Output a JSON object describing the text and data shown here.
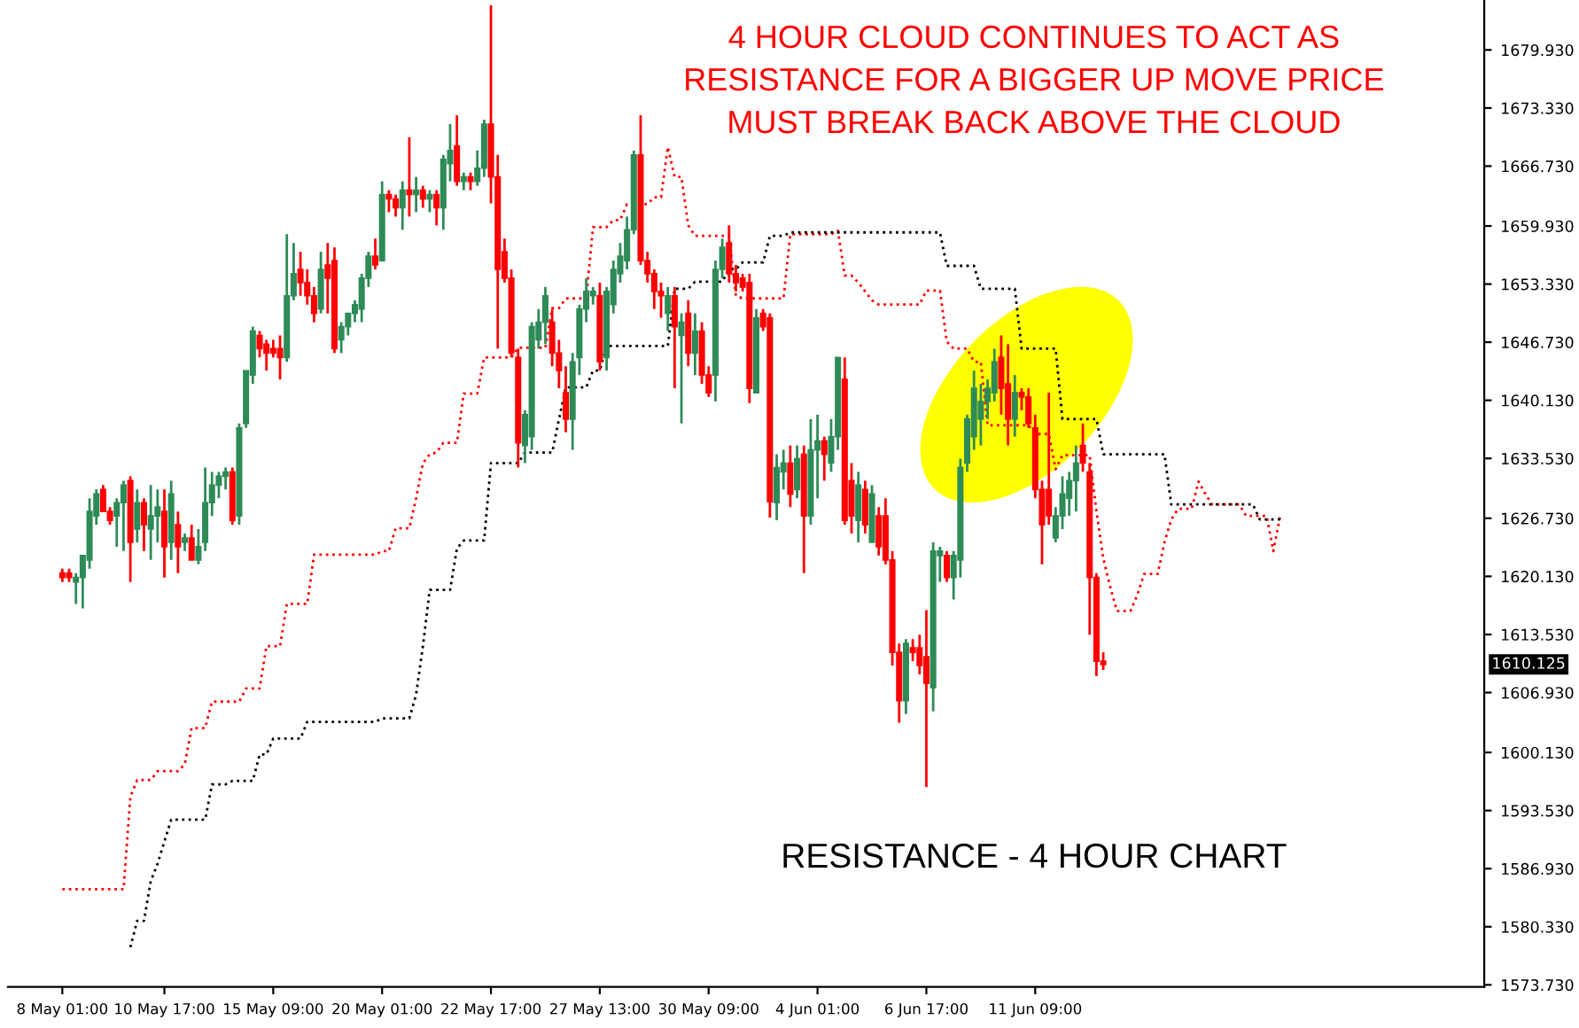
{
  "chart_data": {
    "type": "candlestick",
    "annotations": [
      "4 HOUR CLOUD CONTINUES TO ACT AS\nRESISTANCE FOR A BIGGER UP MOVE PRICE\nMUST BREAK BACK ABOVE THE CLOUD",
      "RESISTANCE - 4 HOUR CHART",
      "1610.125"
    ],
    "categories": [
      "8 May 01:00",
      null,
      null,
      null,
      null,
      null,
      null,
      null,
      null,
      null,
      null,
      null,
      null,
      null,
      null,
      "10 May 17:00",
      null,
      null,
      null,
      null,
      null,
      null,
      null,
      null,
      null,
      null,
      null,
      null,
      null,
      null,
      null,
      "15 May 09:00",
      null,
      null,
      null,
      null,
      null,
      null,
      null,
      null,
      null,
      null,
      null,
      null,
      null,
      null,
      null,
      "20 May 01:00",
      null,
      null,
      null,
      null,
      null,
      null,
      null,
      null,
      null,
      null,
      null,
      null,
      null,
      null,
      null,
      "22 May 17:00",
      null,
      null,
      null,
      null,
      null,
      null,
      null,
      null,
      null,
      null,
      null,
      null,
      null,
      null,
      null,
      "27 May 13:00",
      null,
      null,
      null,
      null,
      null,
      null,
      null,
      null,
      null,
      null,
      null,
      null,
      null,
      null,
      null,
      "30 May 09:00",
      null,
      null,
      null,
      null,
      null,
      null,
      null,
      null,
      null,
      null,
      null,
      null,
      null,
      null,
      null,
      "4 Jun 01:00",
      null,
      null,
      null,
      null,
      null,
      null,
      null,
      null,
      null,
      null,
      null,
      null,
      null,
      null,
      null,
      "6 Jun 17:00",
      null,
      null,
      null,
      null,
      null,
      null,
      null,
      null,
      null,
      null,
      null,
      null,
      null,
      null,
      null,
      "11 Jun 09:00",
      null,
      null,
      null,
      null,
      null,
      null,
      null,
      null,
      null,
      null,
      null,
      null,
      null,
      null,
      null,
      null,
      null,
      null,
      null,
      null,
      null,
      null,
      null,
      null,
      null,
      null,
      null,
      null,
      null,
      null,
      null,
      null,
      null,
      null,
      null,
      null
    ],
    "colors": [
      "#ff0000",
      "#ff0000",
      "#2e8b57",
      "#2e8b57",
      "#2e8b57",
      "#2e8b57",
      "#ff0000",
      "#ff0000",
      "#2e8b57",
      "#2e8b57",
      "#ff0000",
      "#2e8b57",
      "#ff0000",
      "#2e8b57",
      "#2e8b57",
      "#ff0000",
      "#2e8b57",
      "#ff0000",
      "#2e8b57",
      "#ff0000",
      "#2e8b57",
      "#2e8b57",
      "#2e8b57",
      "#2e8b57",
      "#2e8b57",
      "#ff0000",
      "#2e8b57",
      "#2e8b57",
      "#2e8b57",
      "#ff0000",
      "#ff0000",
      "#ff0000",
      "#ff0000",
      "#2e8b57",
      "#2e8b57",
      "#ff0000",
      "#ff0000",
      "#ff0000",
      "#2e8b57",
      "#ff0000",
      "#ff0000",
      "#2e8b57",
      "#2e8b57",
      "#2e8b57",
      "#2e8b57",
      "#2e8b57",
      "#ff0000",
      "#2e8b57",
      "#ff0000",
      "#ff0000",
      "#2e8b57",
      "#ff0000",
      "#2e8b57",
      "#ff0000",
      "#2e8b57",
      "#ff0000",
      "#2e8b57",
      "#2e8b57",
      "#ff0000",
      "#2e8b57",
      "#ff0000",
      "#2e8b57",
      "#2e8b57",
      "#ff0000",
      "#ff0000",
      "#ff0000",
      "#ff0000",
      "#ff0000",
      "#2e8b57",
      "#2e8b57",
      "#2e8b57",
      "#2e8b57",
      "#ff0000",
      "#ff0000",
      "#ff0000",
      "#2e8b57",
      "#2e8b57",
      "#2e8b57",
      "#2e8b57",
      "#ff0000",
      "#2e8b57",
      "#2e8b57",
      "#2e8b57",
      "#2e8b57",
      "#2e8b57",
      "#ff0000",
      "#ff0000",
      "#ff0000",
      "#ff0000",
      "#2e8b57",
      "#ff0000",
      "#2e8b57",
      "#ff0000",
      "#2e8b57",
      "#ff0000",
      "#ff0000",
      "#2e8b57",
      "#2e8b57",
      "#ff0000",
      "#ff0000",
      "#ff0000",
      "#ff0000",
      "#2e8b57",
      "#ff0000",
      "#ff0000",
      "#2e8b57",
      "#2e8b57",
      "#ff0000",
      "#2e8b57",
      "#ff0000",
      "#2e8b57",
      "#2e8b57",
      "#ff0000",
      "#2e8b57",
      "#2e8b57",
      "#ff0000",
      "#ff0000",
      "#2e8b57",
      "#ff0000",
      "#2e8b57",
      "#ff0000",
      "#ff0000",
      "#ff0000",
      "#ff0000",
      "#2e8b57",
      "#ff0000",
      "#ff0000",
      "#ff0000",
      "#2e8b57",
      "#2e8b57",
      "#ff0000",
      "#2e8b57",
      "#2e8b57",
      "#2e8b57",
      "#2e8b57",
      "#2e8b57",
      "#2e8b57",
      "#2e8b57",
      "#ff0000",
      "#ff0000",
      "#2e8b57",
      "#ff0000",
      "#ff0000",
      "#ff0000",
      "#ff0000",
      "#ff0000",
      "#2e8b57",
      "#2e8b57",
      "#2e8b57",
      "#2e8b57",
      "#ff0000",
      "#ff0000",
      "#ff0000",
      "#ff0000",
      null,
      null,
      null,
      null,
      null,
      null,
      null,
      null,
      null,
      null,
      null,
      null,
      null,
      null,
      null,
      null,
      null,
      null,
      null,
      null,
      null,
      null,
      null,
      null,
      null,
      null
    ],
    "ohlc": [
      [
        1620.5,
        1621,
        1619.5,
        1620
      ],
      [
        1620.5,
        1621,
        1619.5,
        1620
      ],
      [
        1619.5,
        1620.5,
        1617,
        1620
      ],
      [
        1620,
        1622.5,
        1616.5,
        1622.5
      ],
      [
        1622,
        1629,
        1621,
        1627.5
      ],
      [
        1627,
        1630,
        1626,
        1629.5
      ],
      [
        1630,
        1630.5,
        1627.5,
        1627.5
      ],
      [
        1627.5,
        1628,
        1626,
        1626.5
      ],
      [
        1627,
        1629,
        1623.5,
        1628.5
      ],
      [
        1628.5,
        1631,
        1623,
        1630.5
      ],
      [
        1631,
        1631.5,
        1619.5,
        1624
      ],
      [
        1625.5,
        1630,
        1624,
        1628.5
      ],
      [
        1628.5,
        1629,
        1623,
        1626
      ],
      [
        1625.5,
        1630.5,
        1622,
        1627
      ],
      [
        1627,
        1630,
        1624,
        1628
      ],
      [
        1627.5,
        1630,
        1620,
        1623.5
      ],
      [
        1624,
        1631,
        1622,
        1629.5
      ],
      [
        1626,
        1627.5,
        1620.5,
        1623.5
      ],
      [
        1624,
        1625,
        1623,
        1624.5
      ],
      [
        1624.5,
        1626,
        1622,
        1622
      ],
      [
        1622,
        1625.5,
        1621.5,
        1623.5
      ],
      [
        1624,
        1632.5,
        1623,
        1628.5
      ],
      [
        1628.5,
        1632,
        1627,
        1630.5
      ],
      [
        1630.5,
        1632,
        1629,
        1631.5
      ],
      [
        1631.5,
        1632.5,
        1630,
        1632
      ],
      [
        1632,
        1632.5,
        1626,
        1626.5
      ],
      [
        1627,
        1637.5,
        1626,
        1637
      ],
      [
        1637.5,
        1643.5,
        1637,
        1643.5
      ],
      [
        1643,
        1648.5,
        1642,
        1648
      ],
      [
        1647.5,
        1648,
        1645,
        1646
      ],
      [
        1646.5,
        1647,
        1643.5,
        1645.5
      ],
      [
        1646,
        1647,
        1645,
        1645.5
      ],
      [
        1646,
        1647.5,
        1642.5,
        1645
      ],
      [
        1645,
        1659,
        1644.5,
        1652
      ],
      [
        1652,
        1658,
        1651.5,
        1654.5
      ],
      [
        1655,
        1657,
        1652,
        1653.5
      ],
      [
        1653.5,
        1655,
        1651,
        1652
      ],
      [
        1652,
        1653,
        1649,
        1650
      ],
      [
        1650.5,
        1657,
        1650,
        1655
      ],
      [
        1655.5,
        1658,
        1650,
        1654
      ],
      [
        1656,
        1657.5,
        1645.5,
        1646
      ],
      [
        1647,
        1649,
        1645.5,
        1648.5
      ],
      [
        1648.5,
        1650,
        1647.5,
        1650
      ],
      [
        1650,
        1651.5,
        1649,
        1651
      ],
      [
        1650.5,
        1654.5,
        1649,
        1654
      ],
      [
        1654,
        1657,
        1653,
        1656.5
      ],
      [
        1656.5,
        1658.5,
        1655,
        1655.5
      ],
      [
        1656,
        1665,
        1656,
        1663.5
      ],
      [
        1663.5,
        1664,
        1661.5,
        1663
      ],
      [
        1663,
        1663.5,
        1661,
        1662
      ],
      [
        1662,
        1665,
        1659.5,
        1664
      ],
      [
        1664,
        1670,
        1661,
        1663.5
      ],
      [
        1663.5,
        1665.5,
        1661.5,
        1664
      ],
      [
        1664,
        1664.5,
        1662,
        1663
      ],
      [
        1663,
        1664,
        1661.5,
        1663.5
      ],
      [
        1663.5,
        1664,
        1660,
        1662
      ],
      [
        1662,
        1668,
        1659.5,
        1667.5
      ],
      [
        1667,
        1671.5,
        1665,
        1668.5
      ],
      [
        1669,
        1672.5,
        1664.5,
        1665
      ],
      [
        1665,
        1666,
        1664,
        1665.5
      ],
      [
        1665.5,
        1666,
        1664,
        1665
      ],
      [
        1665,
        1668.5,
        1664.5,
        1666.5
      ],
      [
        1666.5,
        1672,
        1665.5,
        1671.5
      ],
      [
        1671.5,
        1685,
        1662.5,
        1665.5
      ],
      [
        1665.5,
        1668,
        1646,
        1655
      ],
      [
        1657,
        1658.5,
        1653.5,
        1654
      ],
      [
        1654,
        1655,
        1645,
        1645.5
      ],
      [
        1645,
        1646,
        1632.5,
        1635.3
      ],
      [
        1635,
        1639,
        1633,
        1638.5
      ],
      [
        1636,
        1649,
        1634.5,
        1648.5
      ],
      [
        1647,
        1650.5,
        1646,
        1649
      ],
      [
        1649,
        1653,
        1646.5,
        1652
      ],
      [
        1649,
        1650.5,
        1644,
        1645.5
      ],
      [
        1645.5,
        1647,
        1641.5,
        1643.5
      ],
      [
        1641,
        1644,
        1636.5,
        1638
      ],
      [
        1638,
        1645.5,
        1634.5,
        1644.5
      ],
      [
        1645,
        1651,
        1643,
        1650.5
      ],
      [
        1650.5,
        1654,
        1649,
        1652.5
      ],
      [
        1652,
        1653,
        1651,
        1652.5
      ],
      [
        1652,
        1653.5,
        1643.5,
        1644.5
      ],
      [
        1645,
        1653,
        1643.5,
        1652.5
      ],
      [
        1651,
        1656,
        1650,
        1655
      ],
      [
        1654.5,
        1658,
        1653.5,
        1656.5
      ],
      [
        1656,
        1661,
        1655,
        1659.5
      ],
      [
        1659.5,
        1668.5,
        1659,
        1668
      ],
      [
        1668,
        1672.5,
        1655.5,
        1656
      ],
      [
        1656,
        1657,
        1653.5,
        1654.5
      ],
      [
        1654.5,
        1655,
        1650.5,
        1652.5
      ],
      [
        1652.5,
        1653.5,
        1649.5,
        1652
      ],
      [
        1650,
        1653,
        1648,
        1652
      ],
      [
        1652,
        1653,
        1641.5,
        1648.5
      ],
      [
        1647.5,
        1650,
        1637.5,
        1649
      ],
      [
        1650,
        1651.5,
        1644,
        1645.5
      ],
      [
        1645.5,
        1650,
        1643,
        1648
      ],
      [
        1648,
        1649,
        1642,
        1643
      ],
      [
        1643,
        1644,
        1640.5,
        1641
      ],
      [
        1643,
        1656,
        1640,
        1655
      ],
      [
        1655,
        1658.5,
        1654,
        1657.5
      ],
      [
        1658,
        1660,
        1653.5,
        1654.5
      ],
      [
        1654.5,
        1655.5,
        1652.5,
        1653.5
      ],
      [
        1654,
        1654.5,
        1652.5,
        1653
      ],
      [
        1653.5,
        1654.5,
        1639.8,
        1641.5
      ],
      [
        1641,
        1650.5,
        1641,
        1649.5
      ],
      [
        1650,
        1650.5,
        1648,
        1648.5
      ],
      [
        1649.5,
        1650,
        1626.8,
        1628.6
      ],
      [
        1628.5,
        1634,
        1626.5,
        1632.5
      ],
      [
        1632,
        1634.5,
        1630,
        1633
      ],
      [
        1633,
        1635,
        1628,
        1629.5
      ],
      [
        1630,
        1635,
        1629,
        1633.5
      ],
      [
        1634,
        1635,
        1620.5,
        1627
      ],
      [
        1627,
        1638,
        1626,
        1634.5
      ],
      [
        1634.5,
        1638.5,
        1629,
        1635.5
      ],
      [
        1635.5,
        1636,
        1631,
        1634
      ],
      [
        1633,
        1638,
        1632,
        1636
      ],
      [
        1636,
        1645,
        1634.5,
        1645
      ],
      [
        1642.5,
        1645,
        1626,
        1626.5
      ],
      [
        1631,
        1633,
        1625,
        1627
      ],
      [
        1626.5,
        1632,
        1624,
        1630.5
      ],
      [
        1630,
        1631,
        1625,
        1626
      ],
      [
        1624,
        1630.5,
        1624,
        1629.5
      ],
      [
        1627,
        1628,
        1622.5,
        1623.5
      ],
      [
        1627,
        1629,
        1621.5,
        1622
      ],
      [
        1622,
        1623,
        1610,
        1611.5
      ],
      [
        1611.5,
        1612.5,
        1603.5,
        1606
      ],
      [
        1606,
        1613,
        1604.5,
        1612.5
      ],
      [
        1612,
        1613,
        1610.5,
        1611.5
      ],
      [
        1612,
        1613.5,
        1609,
        1610
      ],
      [
        1611,
        1616.3,
        1596.2,
        1608
      ],
      [
        1607.5,
        1624,
        1604.8,
        1623
      ],
      [
        1622.5,
        1623.5,
        1619.5,
        1623
      ],
      [
        1622.5,
        1623,
        1619.5,
        1620
      ],
      [
        1620,
        1623,
        1617.5,
        1622.5
      ],
      [
        1622,
        1633.5,
        1620,
        1632.5
      ],
      [
        1633,
        1638.5,
        1632,
        1638
      ],
      [
        1636,
        1643.5,
        1634.5,
        1641.5
      ],
      [
        1638,
        1642,
        1635,
        1640
      ],
      [
        1640,
        1642.5,
        1638,
        1641.5
      ],
      [
        1641,
        1646,
        1640,
        1644.5
      ],
      [
        1645,
        1647.5,
        1638.5,
        1641.5
      ],
      [
        1642,
        1646.5,
        1635,
        1638
      ],
      [
        1638,
        1643,
        1636,
        1641
      ],
      [
        1641,
        1641.5,
        1639,
        1640.5
      ],
      [
        1640.5,
        1641.5,
        1637,
        1637.5
      ],
      [
        1637,
        1638.5,
        1629,
        1630
      ],
      [
        1630,
        1631,
        1621.5,
        1626
      ],
      [
        1630,
        1641,
        1626,
        1627
      ],
      [
        1624.5,
        1628,
        1624,
        1627
      ],
      [
        1627,
        1631.5,
        1625.5,
        1629.5
      ],
      [
        1629,
        1632,
        1627,
        1631
      ],
      [
        1631,
        1635,
        1627.5,
        1633
      ],
      [
        1635,
        1637.5,
        1632,
        1633
      ],
      [
        1632,
        1633,
        1613.5,
        1620
      ],
      [
        1620,
        1620.5,
        1608.8,
        1610.5
      ],
      [
        1610.5,
        1611.5,
        1609.5,
        1610.1
      ],
      null,
      null,
      null,
      null,
      null,
      null,
      null,
      null,
      null,
      null,
      null,
      null,
      null,
      null,
      null,
      null,
      null,
      null,
      null,
      null,
      null,
      null,
      null,
      null,
      null,
      null
    ],
    "series": [
      {
        "type": "line",
        "color": "#ff0000",
        "line_style": "dotted",
        "values": [
          1584.6,
          1584.6,
          1584.6,
          1584.6,
          1584.6,
          1584.6,
          1584.6,
          1584.6,
          1584.6,
          1584.6,
          1595.1,
          1597,
          1597,
          1597,
          1598,
          1598,
          1598,
          1598,
          1598.8,
          1602.9,
          1602.9,
          1602.9,
          1605.9,
          1605.9,
          1605.9,
          1605.9,
          1605.9,
          1607.4,
          1607.4,
          1607.4,
          1612.2,
          1612.2,
          1612.2,
          1617,
          1617,
          1617,
          1617,
          1622.6,
          1622.6,
          1622.6,
          1622.6,
          1622.6,
          1622.6,
          1622.6,
          1622.6,
          1622.6,
          1622.6,
          1623,
          1623,
          1625.6,
          1625.6,
          1625.6,
          1629,
          1633,
          1634,
          1634.2,
          1635.3,
          1635.3,
          1635.3,
          1640.9,
          1640.9,
          1640.9,
          1645,
          1645,
          1645,
          1645,
          1645,
          1646.1,
          1646.1,
          1646.1,
          1646.1,
          1646.1,
          1650.6,
          1650.6,
          1651.7,
          1651.7,
          1651.7,
          1651.7,
          1659.8,
          1659.8,
          1659.8,
          1660.6,
          1660.6,
          1662.4,
          1662.4,
          1662.4,
          1662.4,
          1663.2,
          1663.2,
          1668.9,
          1665.5,
          1665.5,
          1660,
          1658.8,
          1658.8,
          1658.8,
          1658.8,
          1658.8,
          1658.8,
          1652,
          1651.7,
          1651.7,
          1651.7,
          1651.7,
          1651.7,
          1651.7,
          1651.7,
          1659,
          1659,
          1659,
          1659,
          1659,
          1659,
          1659,
          1659.4,
          1654.3,
          1654.3,
          1653.5,
          1652.5,
          1651.5,
          1651,
          1651,
          1651,
          1651,
          1651,
          1651,
          1651,
          1652.6,
          1652.6,
          1652.6,
          1646.8,
          1646,
          1646,
          1646,
          1644.5,
          1644.5,
          1637.3,
          1637.3,
          1637.3,
          1637.3,
          1637.3,
          1637.3,
          1637.3,
          1636.3,
          1636.3,
          1636.3,
          1632.3,
          1633.9,
          1633.9,
          1633.9,
          1633.9,
          1633.9,
          1627.5,
          1622.2,
          1619,
          1616.2,
          1616.2,
          1616.2,
          1618,
          1620.4,
          1620.4,
          1620.4,
          1624,
          1626.6,
          1627.8,
          1627.8,
          1627.8,
          1630.9,
          1629.5,
          1628.3,
          1628.3,
          1628.3,
          1628.3,
          1628.3,
          1627,
          1627,
          1627,
          1627,
          1623,
          1627
        ]
      },
      {
        "type": "line",
        "color": "#000000",
        "line_style": "dotted",
        "values": [
          null,
          null,
          null,
          null,
          null,
          null,
          null,
          null,
          null,
          null,
          1578,
          1581,
          1581,
          1585.5,
          1587.5,
          1590,
          1592.5,
          1592.5,
          1592.5,
          1592.5,
          1592.5,
          1592.5,
          1596.5,
          1596.5,
          1596.5,
          1596.9,
          1596.9,
          1596.9,
          1596.9,
          1599.9,
          1599.9,
          1601.7,
          1601.7,
          1601.7,
          1601.7,
          1601.7,
          1603.6,
          1603.6,
          1603.6,
          1603.6,
          1603.6,
          1603.6,
          1603.6,
          1603.6,
          1603.6,
          1603.6,
          1603.6,
          1604,
          1604,
          1604,
          1604,
          1604,
          1606.7,
          1612.2,
          1618.6,
          1618.6,
          1618.6,
          1618.6,
          1623.3,
          1624.2,
          1624.2,
          1624.2,
          1624.2,
          1633,
          1633,
          1633,
          1633,
          1633,
          1634.2,
          1634.2,
          1634.2,
          1634.2,
          1634.2,
          1638,
          1641.6,
          1641.6,
          1641.6,
          1641.6,
          1643.5,
          1643.5,
          1646.3,
          1646.3,
          1646.3,
          1646.3,
          1646.3,
          1646.3,
          1646.3,
          1646.3,
          1646.3,
          1646.3,
          1652.8,
          1652.8,
          1652.8,
          1653.6,
          1653.6,
          1653.6,
          1653.6,
          1653.6,
          1655,
          1655,
          1655.8,
          1655.8,
          1655.8,
          1655.8,
          1658.8,
          1658.8,
          1658.8,
          1659.2,
          1659.2,
          1659.2,
          1659.2,
          1659.2,
          1659.2,
          1659.2,
          1659.2,
          1659.2,
          1659.2,
          1659.2,
          1659.2,
          1659.2,
          1659.2,
          1659.2,
          1659.2,
          1659.2,
          1659.2,
          1659.2,
          1659.2,
          1659.2,
          1659.2,
          1659.2,
          1655.4,
          1655.4,
          1655.4,
          1655.4,
          1655.4,
          1652.8,
          1652.8,
          1652.8,
          1652.8,
          1652.8,
          1652.8,
          1646,
          1646,
          1646,
          1646,
          1646,
          1646,
          1638,
          1638,
          1638,
          1638,
          1638,
          1638,
          1634,
          1634,
          1634,
          1634,
          1634,
          1634,
          1634,
          1634,
          1634,
          1634,
          1628.3,
          1628.3,
          1628.3,
          1628.3,
          1628.3,
          1628.3,
          1628.3,
          1628.3,
          1628.3,
          1628.3,
          1628.3,
          1628.3,
          1628.3,
          1626.6,
          1626.6,
          1626.6,
          1626.6
        ]
      }
    ],
    "ylim": [
      1573.5,
      1685.6
    ],
    "yticks": [
      {
        "value": 1573.73,
        "label": "1573.730"
      },
      {
        "value": 1580.33,
        "label": "1580.330"
      },
      {
        "value": 1586.93,
        "label": "1586.930"
      },
      {
        "value": 1593.53,
        "label": "1593.530"
      },
      {
        "value": 1600.13,
        "label": "1600.130"
      },
      {
        "value": 1606.93,
        "label": "1606.930"
      },
      {
        "value": 1613.53,
        "label": "1613.530"
      },
      {
        "value": 1620.13,
        "label": "1620.130"
      },
      {
        "value": 1626.73,
        "label": "1626.730"
      },
      {
        "value": 1633.53,
        "label": "1633.530"
      },
      {
        "value": 1640.13,
        "label": "1640.130"
      },
      {
        "value": 1646.73,
        "label": "1646.730"
      },
      {
        "value": 1653.33,
        "label": "1653.330"
      },
      {
        "value": 1659.93,
        "label": "1659.930"
      },
      {
        "value": 1666.73,
        "label": "1666.730"
      },
      {
        "value": 1673.33,
        "label": "1673.330"
      },
      {
        "value": 1679.93,
        "label": "1679.930"
      }
    ],
    "grid": false
  }
}
